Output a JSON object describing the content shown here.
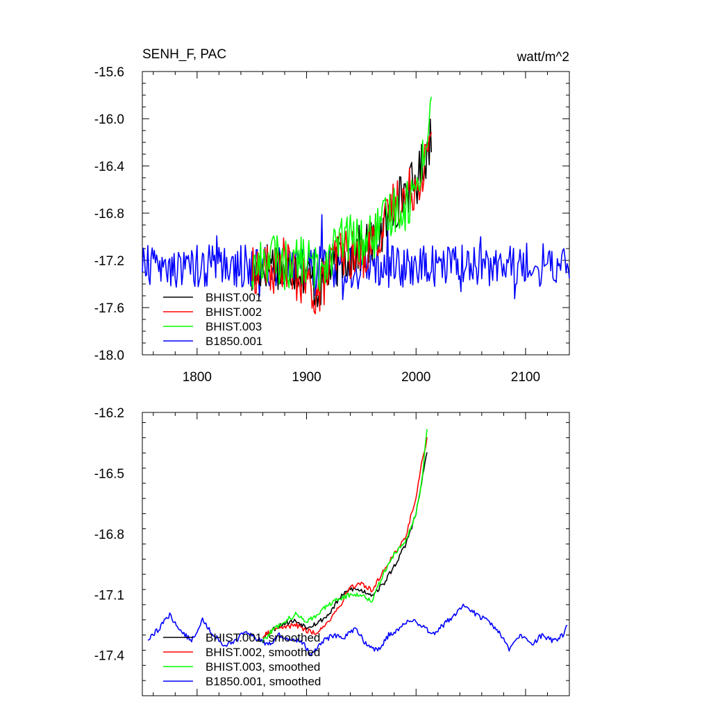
{
  "chart_data": [
    {
      "type": "line",
      "title": "SENH_F, PAC",
      "units": "watt/m^2",
      "xlim": [
        1750,
        2140
      ],
      "ylim": [
        -18.0,
        -15.6
      ],
      "xticks": [
        1800,
        1900,
        2000,
        2100
      ],
      "xtick_labels": [
        "1800",
        "1900",
        "2000",
        "2100"
      ],
      "yticks": [
        -18.0,
        -17.6,
        -17.2,
        -16.8,
        -16.4,
        -16.0,
        -15.6
      ],
      "ytick_labels": [
        "-18.0",
        "-17.6",
        "-17.2",
        "-16.8",
        "-16.4",
        "-16.0",
        "-15.6"
      ],
      "legend_position": "bottom-left",
      "grid": false,
      "series": [
        {
          "name": "BHIST.001",
          "color": "#000000",
          "x_range": [
            1850,
            2014
          ],
          "x": [
            1850,
            1860,
            1870,
            1880,
            1890,
            1900,
            1910,
            1920,
            1930,
            1940,
            1950,
            1960,
            1970,
            1980,
            1990,
            2000,
            2005,
            2010,
            2014
          ],
          "y": [
            -17.35,
            -17.25,
            -17.2,
            -17.3,
            -17.25,
            -17.3,
            -17.45,
            -17.3,
            -17.2,
            -17.15,
            -17.1,
            -17.05,
            -16.95,
            -16.75,
            -16.6,
            -16.55,
            -16.4,
            -16.3,
            -16.1
          ]
        },
        {
          "name": "BHIST.002",
          "color": "#ff0000",
          "x_range": [
            1850,
            2014
          ],
          "x": [
            1850,
            1860,
            1870,
            1880,
            1890,
            1900,
            1910,
            1920,
            1930,
            1940,
            1950,
            1960,
            1970,
            1980,
            1990,
            2000,
            2005,
            2010,
            2014
          ],
          "y": [
            -17.3,
            -17.25,
            -17.3,
            -17.2,
            -17.35,
            -17.4,
            -17.5,
            -17.3,
            -17.1,
            -17.15,
            -17.2,
            -17.0,
            -16.95,
            -16.7,
            -16.65,
            -16.55,
            -16.45,
            -16.3,
            -16.25
          ]
        },
        {
          "name": "BHIST.003",
          "color": "#00ff00",
          "x_range": [
            1850,
            2014
          ],
          "x": [
            1850,
            1860,
            1870,
            1880,
            1890,
            1900,
            1910,
            1920,
            1930,
            1940,
            1950,
            1960,
            1970,
            1980,
            1990,
            2000,
            2005,
            2010,
            2014
          ],
          "y": [
            -17.3,
            -17.2,
            -17.15,
            -17.25,
            -17.2,
            -17.2,
            -17.3,
            -17.15,
            -17.05,
            -17.0,
            -17.05,
            -17.0,
            -16.9,
            -16.75,
            -16.75,
            -16.6,
            -16.35,
            -16.2,
            -15.85
          ]
        },
        {
          "name": "B1850.001",
          "color": "#0000ff",
          "x_range": [
            1750,
            2140
          ],
          "mean": -17.25,
          "amplitude": 0.18
        }
      ]
    },
    {
      "type": "line",
      "title": "",
      "xlim": [
        1750,
        2140
      ],
      "ylim": [
        -17.6,
        -16.2
      ],
      "xticks": [
        1800,
        1900,
        2000,
        2100
      ],
      "yticks": [
        -17.4,
        -17.1,
        -16.8,
        -16.5,
        -16.2
      ],
      "ytick_labels": [
        "-17.4",
        "-17.1",
        "-16.8",
        "-16.5",
        "-16.2"
      ],
      "legend_position": "bottom-left",
      "grid": false,
      "series": [
        {
          "name": "BHIST.001, smoothed",
          "color": "#000000",
          "x": [
            1860,
            1870,
            1880,
            1890,
            1900,
            1910,
            1920,
            1930,
            1940,
            1950,
            1960,
            1970,
            1980,
            1990,
            2000,
            2005,
            2010
          ],
          "y": [
            -17.31,
            -17.27,
            -17.24,
            -17.23,
            -17.26,
            -17.24,
            -17.2,
            -17.12,
            -17.07,
            -17.08,
            -17.1,
            -17.05,
            -16.96,
            -16.86,
            -16.7,
            -16.55,
            -16.39
          ]
        },
        {
          "name": "BHIST.002, smoothed",
          "color": "#ff0000",
          "x": [
            1860,
            1870,
            1880,
            1890,
            1900,
            1910,
            1920,
            1930,
            1940,
            1950,
            1960,
            1970,
            1980,
            1990,
            2000,
            2005,
            2010
          ],
          "y": [
            -17.31,
            -17.27,
            -17.26,
            -17.25,
            -17.28,
            -17.29,
            -17.23,
            -17.16,
            -17.06,
            -17.05,
            -17.08,
            -16.98,
            -16.9,
            -16.82,
            -16.62,
            -16.45,
            -16.33
          ]
        },
        {
          "name": "BHIST.003, smoothed",
          "color": "#00ff00",
          "x": [
            1860,
            1870,
            1880,
            1890,
            1900,
            1910,
            1920,
            1930,
            1940,
            1950,
            1960,
            1970,
            1980,
            1990,
            2000,
            2005,
            2010
          ],
          "y": [
            -17.33,
            -17.27,
            -17.23,
            -17.2,
            -17.23,
            -17.2,
            -17.15,
            -17.12,
            -17.1,
            -17.1,
            -17.13,
            -17.0,
            -16.9,
            -16.84,
            -16.7,
            -16.55,
            -16.28
          ]
        },
        {
          "name": "B1850.001, smoothed",
          "color": "#0000ff",
          "x": [
            1755,
            1765,
            1775,
            1785,
            1795,
            1805,
            1815,
            1825,
            1835,
            1845,
            1855,
            1865,
            1875,
            1885,
            1895,
            1905,
            1915,
            1925,
            1935,
            1945,
            1955,
            1965,
            1975,
            1985,
            1995,
            2005,
            2015,
            2025,
            2035,
            2045,
            2055,
            2065,
            2075,
            2085,
            2095,
            2105,
            2115,
            2125,
            2135,
            2138
          ],
          "y": [
            -17.32,
            -17.27,
            -17.2,
            -17.28,
            -17.33,
            -17.22,
            -17.3,
            -17.35,
            -17.33,
            -17.28,
            -17.32,
            -17.35,
            -17.3,
            -17.32,
            -17.33,
            -17.4,
            -17.33,
            -17.3,
            -17.31,
            -17.27,
            -17.35,
            -17.38,
            -17.3,
            -17.27,
            -17.22,
            -17.25,
            -17.3,
            -17.25,
            -17.2,
            -17.15,
            -17.2,
            -17.23,
            -17.28,
            -17.37,
            -17.3,
            -17.35,
            -17.3,
            -17.33,
            -17.3,
            -17.25
          ]
        }
      ]
    }
  ]
}
